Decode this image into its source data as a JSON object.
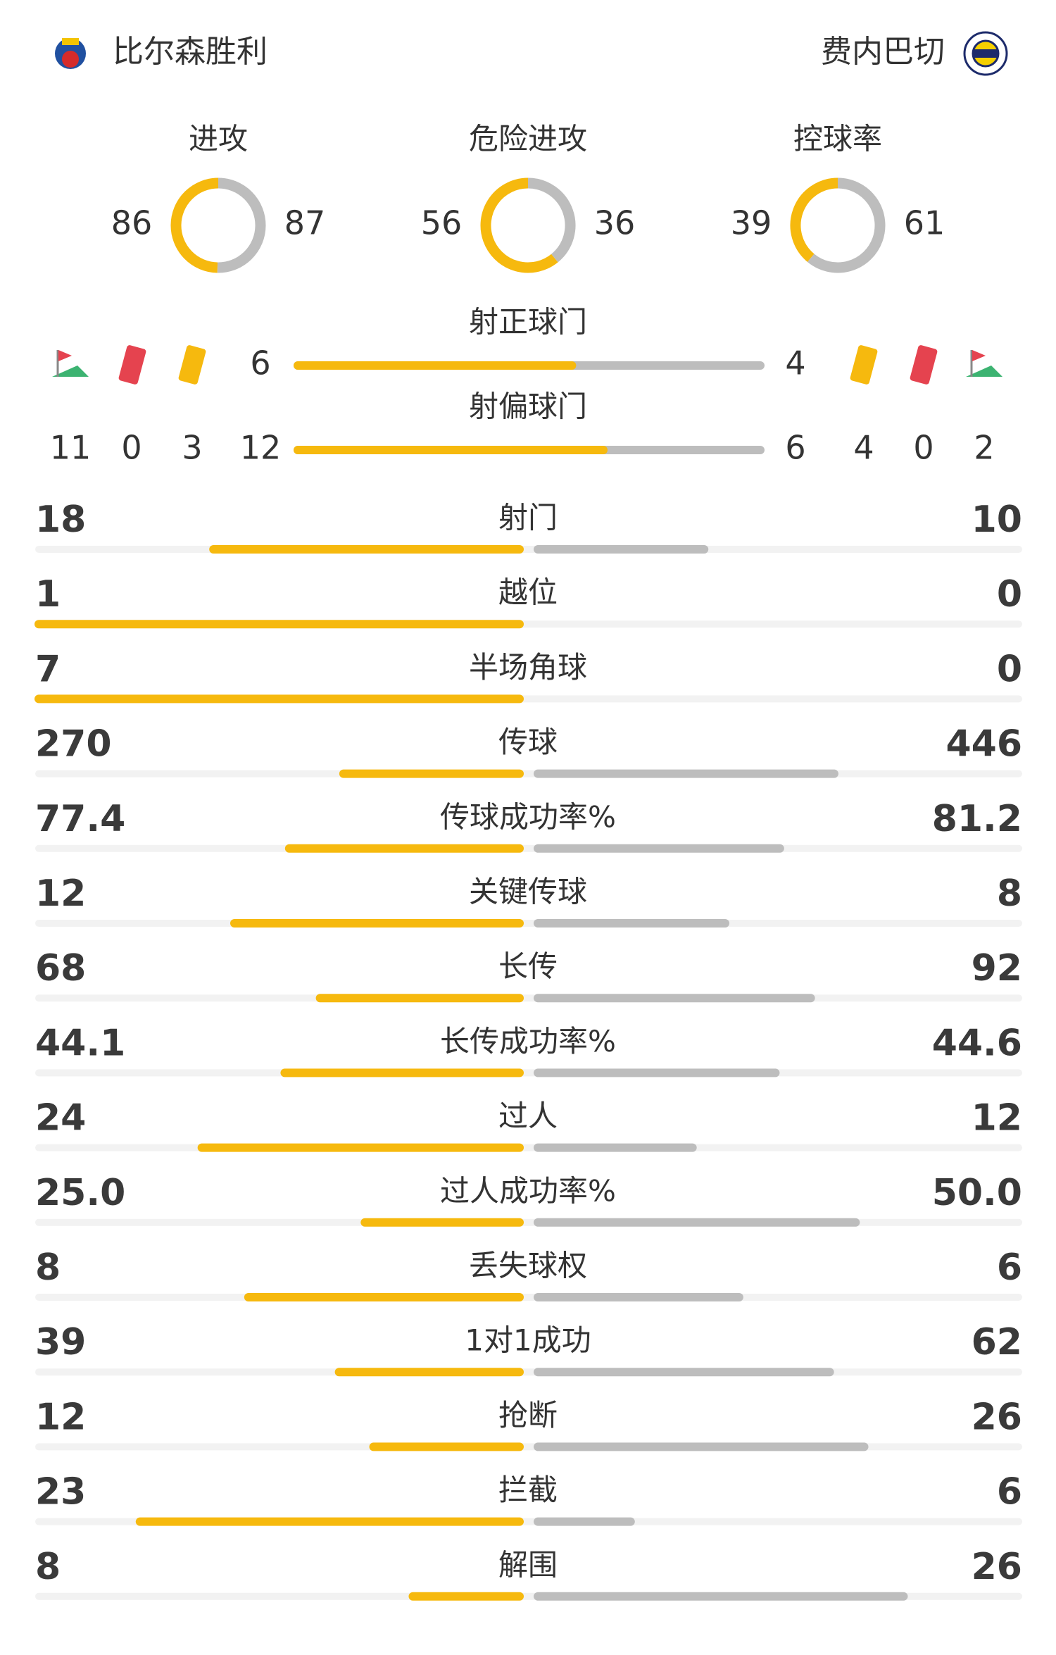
{
  "header": {
    "home_team": "比尔森胜利",
    "away_team": "费内巴切"
  },
  "colors": {
    "home": "#f6b90e",
    "away": "#bdbdbd",
    "track": "#f2f2f2"
  },
  "rings": [
    {
      "label": "进攻",
      "home": 86,
      "away": 87
    },
    {
      "label": "危险进攻",
      "home": 56,
      "away": 36
    },
    {
      "label": "控球率",
      "home": 39,
      "away": 61
    }
  ],
  "shots": [
    {
      "label": "射正球门",
      "home": 6,
      "away": 4
    },
    {
      "label": "射偏球门",
      "home": 12,
      "away": 6
    }
  ],
  "cards": {
    "home": {
      "corners": 11,
      "red": 0,
      "yellow": 3
    },
    "away": {
      "yellow": 4,
      "red": 0,
      "corners": 2
    }
  },
  "stats": [
    {
      "label": "射门",
      "home": 18,
      "away": 10
    },
    {
      "label": "越位",
      "home": 1,
      "away": 0
    },
    {
      "label": "半场角球",
      "home": 7,
      "away": 0
    },
    {
      "label": "传球",
      "home": 270,
      "away": 446
    },
    {
      "label": "传球成功率%",
      "home": 77.4,
      "away": 81.2
    },
    {
      "label": "关键传球",
      "home": 12,
      "away": 8
    },
    {
      "label": "长传",
      "home": 68,
      "away": 92
    },
    {
      "label": "长传成功率%",
      "home": 44.1,
      "away": 44.6
    },
    {
      "label": "过人",
      "home": 24,
      "away": 12
    },
    {
      "label": "过人成功率%",
      "home": {
        "value": 25,
        "label": "25.0"
      },
      "away": {
        "value": 50,
        "label": "50.0"
      }
    },
    {
      "label": "丢失球权",
      "home": 8,
      "away": 6
    },
    {
      "label": "1对1成功",
      "home": 39,
      "away": 62
    },
    {
      "label": "抢断",
      "home": 12,
      "away": 26
    },
    {
      "label": "拦截",
      "home": 23,
      "away": 6
    },
    {
      "label": "解围",
      "home": 8,
      "away": 26
    }
  ]
}
